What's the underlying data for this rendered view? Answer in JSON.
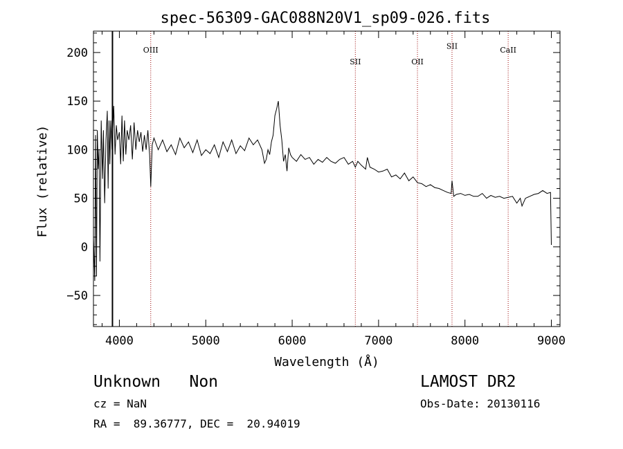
{
  "chart_data": {
    "type": "line",
    "title": "spec-56309-GAC088N20V1_sp09-026.fits",
    "xlabel": "Wavelength (Å)",
    "ylabel": "Flux (relative)",
    "xlim": [
      3700,
      9100
    ],
    "ylim": [
      -82,
      222
    ],
    "xticks": [
      4000,
      5000,
      6000,
      7000,
      8000,
      9000
    ],
    "yticks": [
      -50,
      0,
      50,
      100,
      150,
      200
    ],
    "grid": false,
    "line_color": "#000000",
    "marker_color": "#990000",
    "vline": {
      "x": 3920,
      "color": "#000000"
    },
    "lines": [
      {
        "label": "OIII",
        "x": 4363,
        "label_y": 200
      },
      {
        "label": "SII",
        "x": 6731,
        "label_y": 188
      },
      {
        "label": "OII",
        "x": 7450,
        "label_y": 188
      },
      {
        "label": "SII",
        "x": 7850,
        "label_y": 204
      },
      {
        "label": "CaII",
        "x": 8500,
        "label_y": 200
      }
    ],
    "series": [
      {
        "x": [
          3700,
          3715,
          3725,
          3735,
          3745,
          3755,
          3765,
          3775,
          3790,
          3805,
          3815,
          3830,
          3845,
          3860,
          3870,
          3880,
          3890,
          3900,
          3915,
          3935,
          3950,
          3965,
          3980,
          4000,
          4015,
          4030,
          4045,
          4060,
          4075,
          4090,
          4110,
          4130,
          4150,
          4170,
          4190,
          4210,
          4230,
          4250,
          4270,
          4290,
          4310,
          4330,
          4350,
          4363,
          4380,
          4400,
          4450,
          4500,
          4550,
          4600,
          4650,
          4700,
          4750,
          4800,
          4850,
          4900,
          4950,
          5000,
          5050,
          5100,
          5150,
          5200,
          5250,
          5300,
          5350,
          5400,
          5450,
          5500,
          5550,
          5600,
          5650,
          5680,
          5700,
          5720,
          5740,
          5760,
          5780,
          5800,
          5820,
          5840,
          5860,
          5880,
          5900,
          5920,
          5940,
          5960,
          5980,
          6000,
          6050,
          6100,
          6150,
          6200,
          6250,
          6300,
          6350,
          6400,
          6450,
          6500,
          6550,
          6600,
          6650,
          6700,
          6731,
          6760,
          6800,
          6850,
          6870,
          6900,
          6950,
          7000,
          7050,
          7100,
          7150,
          7200,
          7250,
          7300,
          7350,
          7400,
          7450,
          7500,
          7550,
          7600,
          7650,
          7700,
          7750,
          7800,
          7840,
          7850,
          7870,
          7900,
          7950,
          8000,
          8050,
          8100,
          8150,
          8200,
          8250,
          8300,
          8350,
          8400,
          8450,
          8500,
          8550,
          8600,
          8640,
          8660,
          8700,
          8750,
          8800,
          8850,
          8900,
          8950,
          8990,
          9000
        ],
        "y": [
          10,
          -35,
          115,
          -30,
          120,
          80,
          100,
          -15,
          130,
          70,
          120,
          45,
          110,
          140,
          60,
          130,
          85,
          130,
          100,
          145,
          95,
          125,
          110,
          118,
          85,
          135,
          88,
          130,
          95,
          120,
          110,
          125,
          90,
          128,
          100,
          120,
          108,
          118,
          98,
          115,
          100,
          120,
          95,
          62,
          105,
          112,
          100,
          110,
          98,
          105,
          95,
          112,
          102,
          108,
          97,
          110,
          94,
          100,
          96,
          105,
          92,
          108,
          98,
          110,
          96,
          104,
          99,
          112,
          105,
          110,
          100,
          86,
          90,
          100,
          95,
          108,
          115,
          135,
          142,
          150,
          125,
          110,
          88,
          95,
          78,
          102,
          95,
          92,
          88,
          95,
          90,
          92,
          85,
          90,
          87,
          92,
          88,
          86,
          90,
          92,
          85,
          88,
          82,
          88,
          84,
          80,
          92,
          82,
          80,
          77,
          78,
          80,
          72,
          74,
          70,
          76,
          68,
          72,
          66,
          65,
          62,
          64,
          61,
          60,
          58,
          56,
          55,
          68,
          52,
          54,
          55,
          53,
          54,
          52,
          52,
          55,
          50,
          53,
          51,
          52,
          50,
          51,
          52,
          45,
          50,
          42,
          50,
          52,
          54,
          55,
          58,
          55,
          56,
          2
        ]
      }
    ]
  },
  "info": {
    "left_line1": "Unknown   Non",
    "left_line2": "cz = NaN",
    "left_line3": "RA =  89.36777, DEC =  20.94019",
    "right_line1": "LAMOST DR2",
    "right_line2": "Obs-Date: 20130116"
  }
}
